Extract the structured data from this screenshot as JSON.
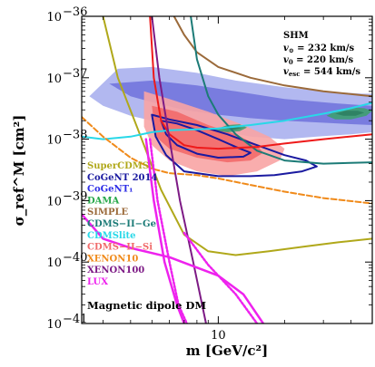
{
  "chart_data": {
    "type": "line",
    "xlabel": "m [GeV/c²]",
    "ylabel": "σ_ref^M [cm²]",
    "x_scale": "log",
    "y_scale": "log",
    "xlim": [
      2.4,
      50
    ],
    "ylim": [
      1e-41,
      1e-36
    ],
    "x_ticks": [
      {
        "value": 10,
        "label": "10"
      }
    ],
    "y_ticks": [
      {
        "value": 1e-36,
        "base": "10",
        "exp": "−36"
      },
      {
        "value": 1e-37,
        "base": "10",
        "exp": "−37"
      },
      {
        "value": 1e-38,
        "base": "10",
        "exp": "−38"
      },
      {
        "value": 1e-39,
        "base": "10",
        "exp": "−39"
      },
      {
        "value": 1e-40,
        "base": "10",
        "exp": "−40"
      },
      {
        "value": 1e-41,
        "base": "10",
        "exp": "−41"
      }
    ],
    "annotation": "Magnetic dipole DM",
    "halo": {
      "title": "SHM",
      "lines": [
        {
          "sym": "v",
          "sub": "⊙",
          "val": " = 232 km/s"
        },
        {
          "sym": "v",
          "sub": "0",
          "val": " = 220 km/s"
        },
        {
          "sym": "v",
          "sub": "esc",
          "val": " = 544 km/s"
        }
      ]
    },
    "legend": [
      {
        "label": "SuperCDMS",
        "color": "#b0a81a"
      },
      {
        "label": "CoGeNT 2014",
        "color": "#1a1aa0"
      },
      {
        "label": "CoGeNT₁",
        "color": "#2e2ee6"
      },
      {
        "label": "DAMA",
        "color": "#27a84a"
      },
      {
        "label": "SIMPLE",
        "color": "#9b6a3a"
      },
      {
        "label": "CDMS−II−Ge",
        "color": "#1c7b77"
      },
      {
        "label": "CDMSlite",
        "color": "#28d8e8"
      },
      {
        "label": "CDMS−II−Si",
        "color": "#f06a6a"
      },
      {
        "label": "XENON10",
        "color": "#f08a1a"
      },
      {
        "label": "XENON100",
        "color": "#7d1a85"
      },
      {
        "label": "LUX",
        "color": "#ee22ee"
      }
    ],
    "regions": [
      {
        "name": "CoGeNT₁",
        "level": "outer",
        "color": "#aab0ee",
        "points": [
          [
            2.6,
            5e-38
          ],
          [
            3.5,
            1.4e-37
          ],
          [
            5,
            1.5e-37
          ],
          [
            8,
            1.2e-37
          ],
          [
            12,
            9e-38
          ],
          [
            20,
            7e-38
          ],
          [
            30,
            6e-38
          ],
          [
            45,
            5.5e-38
          ],
          [
            50,
            5.5e-38
          ],
          [
            50,
            1.3e-38
          ],
          [
            40,
            1.2e-38
          ],
          [
            28,
            1.1e-38
          ],
          [
            20,
            1e-38
          ],
          [
            14,
            1.1e-38
          ],
          [
            10,
            1.4e-38
          ],
          [
            7,
            1.6e-38
          ],
          [
            5,
            2e-38
          ],
          [
            4,
            2.4e-38
          ],
          [
            3,
            3.5e-38
          ]
        ]
      },
      {
        "name": "CoGeNT₁",
        "level": "inner",
        "color": "#7276dd",
        "points": [
          [
            3.2,
            8e-38
          ],
          [
            5,
            9e-38
          ],
          [
            8,
            7.5e-38
          ],
          [
            12,
            6e-38
          ],
          [
            20,
            4.5e-38
          ],
          [
            35,
            3.8e-38
          ],
          [
            50,
            3.5e-38
          ],
          [
            50,
            1.7e-38
          ],
          [
            35,
            1.8e-38
          ],
          [
            20,
            2e-38
          ],
          [
            14,
            2.2e-38
          ],
          [
            10,
            2.5e-38
          ],
          [
            7,
            3e-38
          ],
          [
            5,
            4e-38
          ],
          [
            4,
            5e-38
          ]
        ]
      },
      {
        "name": "CDMS−II−Si",
        "level": "outer",
        "color": "#f8a4a4",
        "points": [
          [
            4.6,
            6e-38
          ],
          [
            6,
            4.5e-38
          ],
          [
            9,
            2.8e-38
          ],
          [
            13,
            1.7e-38
          ],
          [
            17,
            1.1e-38
          ],
          [
            20,
            7e-39
          ],
          [
            19,
            4.5e-39
          ],
          [
            15,
            3e-39
          ],
          [
            11,
            2.5e-39
          ],
          [
            8,
            3e-39
          ],
          [
            6,
            4.5e-39
          ],
          [
            5,
            8e-39
          ],
          [
            4.6,
            1.6e-38
          ]
        ]
      },
      {
        "name": "CDMS−II−Si",
        "level": "inner",
        "color": "#f26a6a",
        "points": [
          [
            5,
            3.5e-38
          ],
          [
            6.5,
            2.8e-38
          ],
          [
            9,
            1.7e-38
          ],
          [
            12,
            1.2e-38
          ],
          [
            15,
            8e-39
          ],
          [
            16,
            6e-39
          ],
          [
            14,
            4.5e-39
          ],
          [
            11,
            4.2e-39
          ],
          [
            8,
            5e-39
          ],
          [
            6,
            7e-39
          ],
          [
            5.2,
            1.1e-38
          ]
        ]
      },
      {
        "name": "DAMA",
        "level": "outer",
        "color": "#3ea070",
        "points": [
          [
            9.5,
            1.4e-38
          ],
          [
            11,
            1.7e-38
          ],
          [
            12.5,
            1.75e-38
          ],
          [
            13.5,
            1.55e-38
          ],
          [
            12.5,
            1.35e-38
          ],
          [
            11,
            1.3e-38
          ]
        ]
      },
      {
        "name": "DAMA",
        "level": "inner",
        "color": "#2d7f62",
        "points": [
          [
            10.5,
            1.52e-38
          ],
          [
            11.8,
            1.62e-38
          ],
          [
            12.8,
            1.52e-38
          ],
          [
            11.8,
            1.42e-38
          ]
        ]
      },
      {
        "name": "DAMA",
        "level": "outer",
        "color": "#3ea070",
        "points": [
          [
            31,
            2.4e-38
          ],
          [
            35,
            3e-38
          ],
          [
            40,
            3.3e-38
          ],
          [
            46,
            3.2e-38
          ],
          [
            50,
            2.9e-38
          ],
          [
            47,
            2.4e-38
          ],
          [
            40,
            2.1e-38
          ],
          [
            34,
            2.1e-38
          ]
        ]
      },
      {
        "name": "DAMA",
        "level": "inner",
        "color": "#2d7f62",
        "points": [
          [
            34,
            2.6e-38
          ],
          [
            38,
            2.9e-38
          ],
          [
            43,
            2.9e-38
          ],
          [
            46,
            2.7e-38
          ],
          [
            42,
            2.4e-38
          ],
          [
            37,
            2.4e-38
          ]
        ]
      }
    ],
    "series": [
      {
        "name": "SuperCDMS",
        "color": "#b0a81a",
        "dash": "",
        "width": 2,
        "points": [
          [
            3,
            1e-36
          ],
          [
            3.5,
            1e-37
          ],
          [
            4.3,
            1.5e-38
          ],
          [
            5.5,
            1.5e-39
          ],
          [
            7,
            2.8e-40
          ],
          [
            9,
            1.5e-40
          ],
          [
            12,
            1.3e-40
          ],
          [
            17,
            1.5e-40
          ],
          [
            25,
            1.8e-40
          ],
          [
            35,
            2.1e-40
          ],
          [
            50,
            2.4e-40
          ]
        ]
      },
      {
        "name": "CoGeNT 2014",
        "color": "#1a1aa0",
        "dash": "",
        "width": 2,
        "points": [
          [
            5,
            2.5e-38
          ],
          [
            6,
            2.1e-38
          ],
          [
            8,
            1.7e-38
          ],
          [
            11,
            1.2e-38
          ],
          [
            15,
            8e-39
          ],
          [
            20,
            5.5e-39
          ],
          [
            25,
            4.5e-39
          ],
          [
            28,
            3.6e-39
          ],
          [
            24,
            3e-39
          ],
          [
            18,
            2.6e-39
          ],
          [
            14,
            2.5e-39
          ],
          [
            10,
            2.5e-39
          ],
          [
            7,
            3e-39
          ],
          [
            5.8,
            5.5e-39
          ],
          [
            5.2,
            1.1e-38
          ],
          [
            5,
            2.5e-38
          ]
        ]
      },
      {
        "name": "CoGeNT 2014",
        "color": "#1a1aa0",
        "dash": "",
        "width": 2,
        "points": [
          [
            5.5,
            2e-38
          ],
          [
            6.5,
            1.8e-38
          ],
          [
            8,
            1.4e-38
          ],
          [
            10,
            1e-38
          ],
          [
            12,
            7.5e-39
          ],
          [
            14,
            6e-39
          ],
          [
            13,
            5.2e-39
          ],
          [
            10,
            5e-39
          ],
          [
            8,
            5.8e-39
          ],
          [
            6.5,
            8e-39
          ],
          [
            5.8,
            1.2e-38
          ],
          [
            5.5,
            2e-38
          ]
        ]
      },
      {
        "name": "SIMPLE",
        "color": "#9b6a3a",
        "dash": "",
        "width": 2,
        "points": [
          [
            6.3,
            1e-36
          ],
          [
            7,
            5e-37
          ],
          [
            8,
            2.6e-37
          ],
          [
            10,
            1.5e-37
          ],
          [
            14,
            1e-37
          ],
          [
            20,
            7.5e-38
          ],
          [
            30,
            6e-38
          ],
          [
            50,
            5e-38
          ]
        ]
      },
      {
        "name": "CDMS−II−Ge",
        "color": "#1c7b77",
        "dash": "",
        "width": 2,
        "points": [
          [
            7.5,
            1e-36
          ],
          [
            8,
            2e-37
          ],
          [
            9,
            5e-38
          ],
          [
            10,
            2.5e-38
          ],
          [
            12,
            1.2e-38
          ],
          [
            15,
            6.5e-39
          ],
          [
            20,
            4.5e-39
          ],
          [
            30,
            4e-39
          ],
          [
            50,
            4.2e-39
          ]
        ]
      },
      {
        "name": "CDMSlite",
        "color": "#28d8e8",
        "dash": "",
        "width": 2,
        "points": [
          [
            2.4,
            1.1e-38
          ],
          [
            3,
            1e-38
          ],
          [
            4,
            1.1e-38
          ],
          [
            5,
            1.3e-38
          ],
          [
            6,
            1.4e-38
          ],
          [
            8,
            1.45e-38
          ],
          [
            10,
            1.5e-38
          ],
          [
            14,
            1.7e-38
          ],
          [
            20,
            2e-38
          ],
          [
            30,
            2.6e-38
          ],
          [
            40,
            3.2e-38
          ],
          [
            50,
            3.9e-38
          ]
        ]
      },
      {
        "name": "XENON10",
        "color": "#f08a1a",
        "dash": "6,3",
        "width": 2,
        "points": [
          [
            2.4,
            2.3e-38
          ],
          [
            3,
            1.1e-38
          ],
          [
            4,
            5e-39
          ],
          [
            5,
            3.3e-39
          ],
          [
            6,
            2.8e-39
          ],
          [
            8,
            2.6e-39
          ],
          [
            10,
            2.3e-39
          ],
          [
            14,
            1.8e-39
          ],
          [
            20,
            1.4e-39
          ],
          [
            30,
            1.1e-39
          ],
          [
            50,
            9e-40
          ]
        ]
      },
      {
        "name": "CDMS−II−Si",
        "color": "#ee1a1a",
        "dash": "",
        "width": 2,
        "points": [
          [
            4.9,
            1e-36
          ],
          [
            5.1,
            1e-37
          ],
          [
            5.5,
            2e-38
          ],
          [
            6,
            1.2e-38
          ],
          [
            7,
            8e-39
          ],
          [
            8,
            7.3e-39
          ],
          [
            10,
            7e-39
          ],
          [
            15,
            7.5e-39
          ],
          [
            20,
            8.5e-39
          ],
          [
            30,
            1e-38
          ],
          [
            50,
            1.2e-38
          ]
        ]
      },
      {
        "name": "XENON100",
        "color": "#7d1a85",
        "dash": "",
        "width": 2,
        "points": [
          [
            5,
            1e-36
          ],
          [
            5.4,
            1e-37
          ],
          [
            6,
            1e-38
          ],
          [
            6.7,
            1e-39
          ],
          [
            7.7,
            1e-40
          ],
          [
            8.8,
            1e-41
          ]
        ]
      },
      {
        "name": "LUX",
        "color": "#ee22ee",
        "dash": "",
        "width": 2.5,
        "points": [
          [
            4.7,
            1e-38
          ],
          [
            5.1,
            1e-39
          ],
          [
            5.7,
            1e-40
          ],
          [
            6.5,
            2e-41
          ],
          [
            7,
            1e-41
          ]
        ]
      },
      {
        "name": "LUX",
        "color": "#ee22ee",
        "dash": "",
        "width": 2.5,
        "points": [
          [
            2.4,
            6e-40
          ],
          [
            3,
            2.4e-40
          ],
          [
            4,
            1.7e-40
          ],
          [
            6,
            1.2e-40
          ],
          [
            10,
            6e-41
          ],
          [
            13,
            3e-41
          ],
          [
            16,
            1e-41
          ]
        ]
      },
      {
        "name": "LUX",
        "color": "#ee22ee",
        "dash": "2,2",
        "width": 2.5,
        "points": [
          [
            4.9,
            1e-38
          ],
          [
            5.3,
            1e-39
          ],
          [
            6,
            1e-40
          ],
          [
            6.6,
            2e-41
          ],
          [
            7.2,
            1e-41
          ]
        ]
      },
      {
        "name": "LUX",
        "color": "#ee22ee",
        "dash": "2,2",
        "width": 2.5,
        "points": [
          [
            7,
            3e-40
          ],
          [
            9,
            9e-41
          ],
          [
            12,
            3e-41
          ],
          [
            15,
            1e-41
          ]
        ]
      }
    ]
  }
}
